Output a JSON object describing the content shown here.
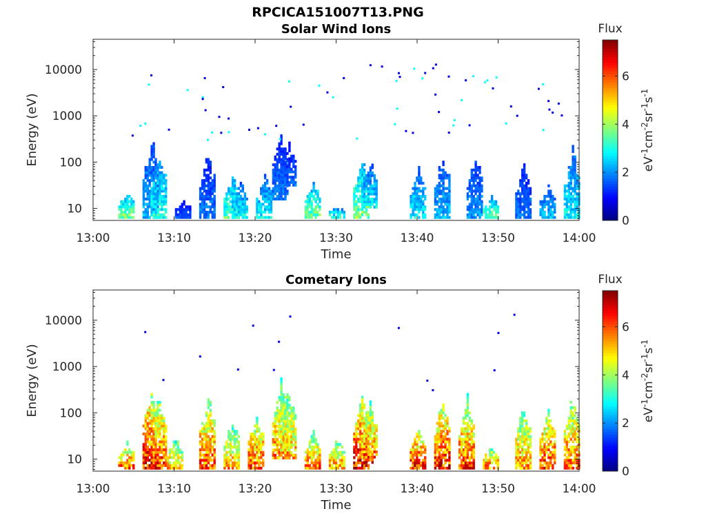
{
  "figure": {
    "title": "RPCICA151007T13.PNG",
    "background": "#ffffff"
  },
  "chart_data": [
    {
      "type": "heatmap",
      "title": "Solar Wind Ions",
      "xlabel": "Time",
      "ylabel": "Energy (eV)",
      "x_ticks": [
        "13:00",
        "13:10",
        "13:20",
        "13:30",
        "13:40",
        "13:50",
        "14:00"
      ],
      "x_range": [
        "13:00",
        "14:00"
      ],
      "y_scale": "log",
      "y_ticks": [
        10,
        100,
        1000,
        10000
      ],
      "y_tick_labels": [
        "10",
        "100",
        "1000",
        "10000"
      ],
      "ylim": [
        5.5,
        45000
      ],
      "colorbar": {
        "title": "Flux",
        "label": "eV-1cm-2sr-1s-1",
        "ticks": [
          0,
          2,
          4,
          6
        ],
        "range": [
          0,
          7.5
        ],
        "colormap": "jet"
      },
      "activity_bursts": [
        {
          "time": "13:04",
          "emin": 6,
          "emax": 25,
          "flux": 3.2
        },
        {
          "time": "13:07",
          "emin": 6,
          "emax": 500,
          "flux": 2.0
        },
        {
          "time": "13:08",
          "emin": 6,
          "emax": 200,
          "flux": 2.6
        },
        {
          "time": "13:11",
          "emin": 6,
          "emax": 15,
          "flux": 1.3
        },
        {
          "time": "13:14",
          "emin": 6,
          "emax": 220,
          "flux": 1.6
        },
        {
          "time": "13:17",
          "emin": 6,
          "emax": 60,
          "flux": 3.0
        },
        {
          "time": "13:18",
          "emin": 6,
          "emax": 40,
          "flux": 2.5
        },
        {
          "time": "13:21",
          "emin": 6,
          "emax": 60,
          "flux": 2.4
        },
        {
          "time": "13:23",
          "emin": 15,
          "emax": 600,
          "flux": 1.6
        },
        {
          "time": "13:24",
          "emin": 30,
          "emax": 300,
          "flux": 1.5
        },
        {
          "time": "13:27",
          "emin": 6,
          "emax": 40,
          "flux": 3.2
        },
        {
          "time": "13:30",
          "emin": 6,
          "emax": 12,
          "flux": 2.6
        },
        {
          "time": "13:33",
          "emin": 6,
          "emax": 180,
          "flux": 3.2
        },
        {
          "time": "13:34",
          "emin": 10,
          "emax": 120,
          "flux": 2.4
        },
        {
          "time": "13:40",
          "emin": 6,
          "emax": 80,
          "flux": 2.4
        },
        {
          "time": "13:43",
          "emin": 6,
          "emax": 200,
          "flux": 2.0
        },
        {
          "time": "13:47",
          "emin": 6,
          "emax": 200,
          "flux": 1.8
        },
        {
          "time": "13:49",
          "emin": 6,
          "emax": 20,
          "flux": 3.0
        },
        {
          "time": "13:53",
          "emin": 6,
          "emax": 120,
          "flux": 1.6
        },
        {
          "time": "13:56",
          "emin": 6,
          "emax": 35,
          "flux": 2.0
        },
        {
          "time": "13:59",
          "emin": 6,
          "emax": 250,
          "flux": 2.4
        }
      ]
    },
    {
      "type": "heatmap",
      "title": "Cometary Ions",
      "xlabel": "Time",
      "ylabel": "Energy (eV)",
      "x_ticks": [
        "13:00",
        "13:10",
        "13:20",
        "13:30",
        "13:40",
        "13:50",
        "14:00"
      ],
      "x_range": [
        "13:00",
        "14:00"
      ],
      "y_scale": "log",
      "y_ticks": [
        10,
        100,
        1000,
        10000
      ],
      "y_tick_labels": [
        "10",
        "100",
        "1000",
        "10000"
      ],
      "ylim": [
        5.5,
        45000
      ],
      "colorbar": {
        "title": "Flux",
        "label": "eV-1cm-2sr-1s-1",
        "ticks": [
          0,
          2,
          4,
          6
        ],
        "range": [
          0,
          7.5
        ],
        "colormap": "jet"
      },
      "activity_bursts": [
        {
          "time": "13:04",
          "emin": 6,
          "emax": 25,
          "flux": 5.2
        },
        {
          "time": "13:07",
          "emin": 6,
          "emax": 600,
          "flux": 5.8
        },
        {
          "time": "13:08",
          "emin": 6,
          "emax": 300,
          "flux": 5.5
        },
        {
          "time": "13:10",
          "emin": 6,
          "emax": 30,
          "flux": 4.6
        },
        {
          "time": "13:14",
          "emin": 6,
          "emax": 400,
          "flux": 5.3
        },
        {
          "time": "13:17",
          "emin": 6,
          "emax": 80,
          "flux": 4.6
        },
        {
          "time": "13:20",
          "emin": 6,
          "emax": 120,
          "flux": 5.2
        },
        {
          "time": "13:23",
          "emin": 10,
          "emax": 700,
          "flux": 4.9
        },
        {
          "time": "13:24",
          "emin": 10,
          "emax": 500,
          "flux": 4.6
        },
        {
          "time": "13:27",
          "emin": 6,
          "emax": 40,
          "flux": 5.0
        },
        {
          "time": "13:30",
          "emin": 6,
          "emax": 30,
          "flux": 4.8
        },
        {
          "time": "13:33",
          "emin": 6,
          "emax": 300,
          "flux": 5.9
        },
        {
          "time": "13:34",
          "emin": 8,
          "emax": 200,
          "flux": 5.3
        },
        {
          "time": "13:40",
          "emin": 6,
          "emax": 60,
          "flux": 5.6
        },
        {
          "time": "13:43",
          "emin": 6,
          "emax": 300,
          "flux": 5.6
        },
        {
          "time": "13:46",
          "emin": 6,
          "emax": 250,
          "flux": 5.3
        },
        {
          "time": "13:49",
          "emin": 6,
          "emax": 20,
          "flux": 5.0
        },
        {
          "time": "13:53",
          "emin": 6,
          "emax": 200,
          "flux": 4.8
        },
        {
          "time": "13:56",
          "emin": 6,
          "emax": 150,
          "flux": 5.4
        },
        {
          "time": "13:59",
          "emin": 6,
          "emax": 300,
          "flux": 5.2
        }
      ]
    }
  ]
}
